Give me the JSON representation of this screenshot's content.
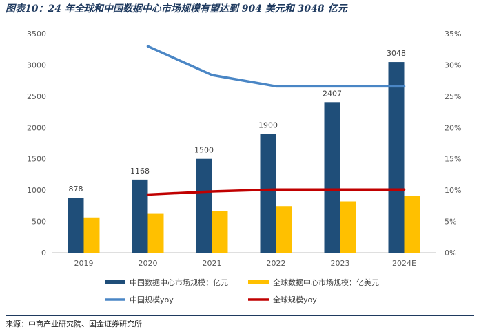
{
  "figure": {
    "title": "图表10：24 年全球和中国数据中心市场规模有望达到 904 美元和 3048 亿元",
    "source": "来源：中商产业研究院、国金证券研究所"
  },
  "chart_data": {
    "type": "bar",
    "categories": [
      "2019",
      "2020",
      "2021",
      "2022",
      "2023",
      "2024E"
    ],
    "ylim": [
      0,
      3500
    ],
    "yticks": [
      "0",
      "500",
      "1000",
      "1500",
      "2000",
      "2500",
      "3000",
      "3500"
    ],
    "y2lim": [
      0,
      35
    ],
    "y2ticks": [
      "0%",
      "5%",
      "10%",
      "15%",
      "20%",
      "25%",
      "30%",
      "35%"
    ],
    "grid": false,
    "legend_position": "bottom",
    "series": [
      {
        "name": "中国数据中心市场规模：亿元",
        "kind": "bar",
        "axis": "left",
        "color": "#1f4e79",
        "values": [
          878,
          1168,
          1500,
          1900,
          2407,
          3048
        ],
        "labels": [
          "878",
          "1168",
          "1500",
          "1900",
          "2407",
          "3048"
        ]
      },
      {
        "name": "全球数据中心市场规模：亿美元",
        "kind": "bar",
        "axis": "left",
        "color": "#ffc000",
        "values": [
          564,
          621,
          669,
          746,
          820,
          904
        ]
      },
      {
        "name": "中国规模yoy",
        "kind": "line",
        "axis": "right",
        "color": "#4a86c5",
        "values": [
          null,
          33.0,
          28.4,
          26.6,
          26.6,
          26.6
        ]
      },
      {
        "name": "全球规模yoy",
        "kind": "line",
        "axis": "right",
        "color": "#c00000",
        "values": [
          null,
          9.3,
          9.8,
          10.1,
          10.1,
          10.1
        ]
      }
    ]
  }
}
